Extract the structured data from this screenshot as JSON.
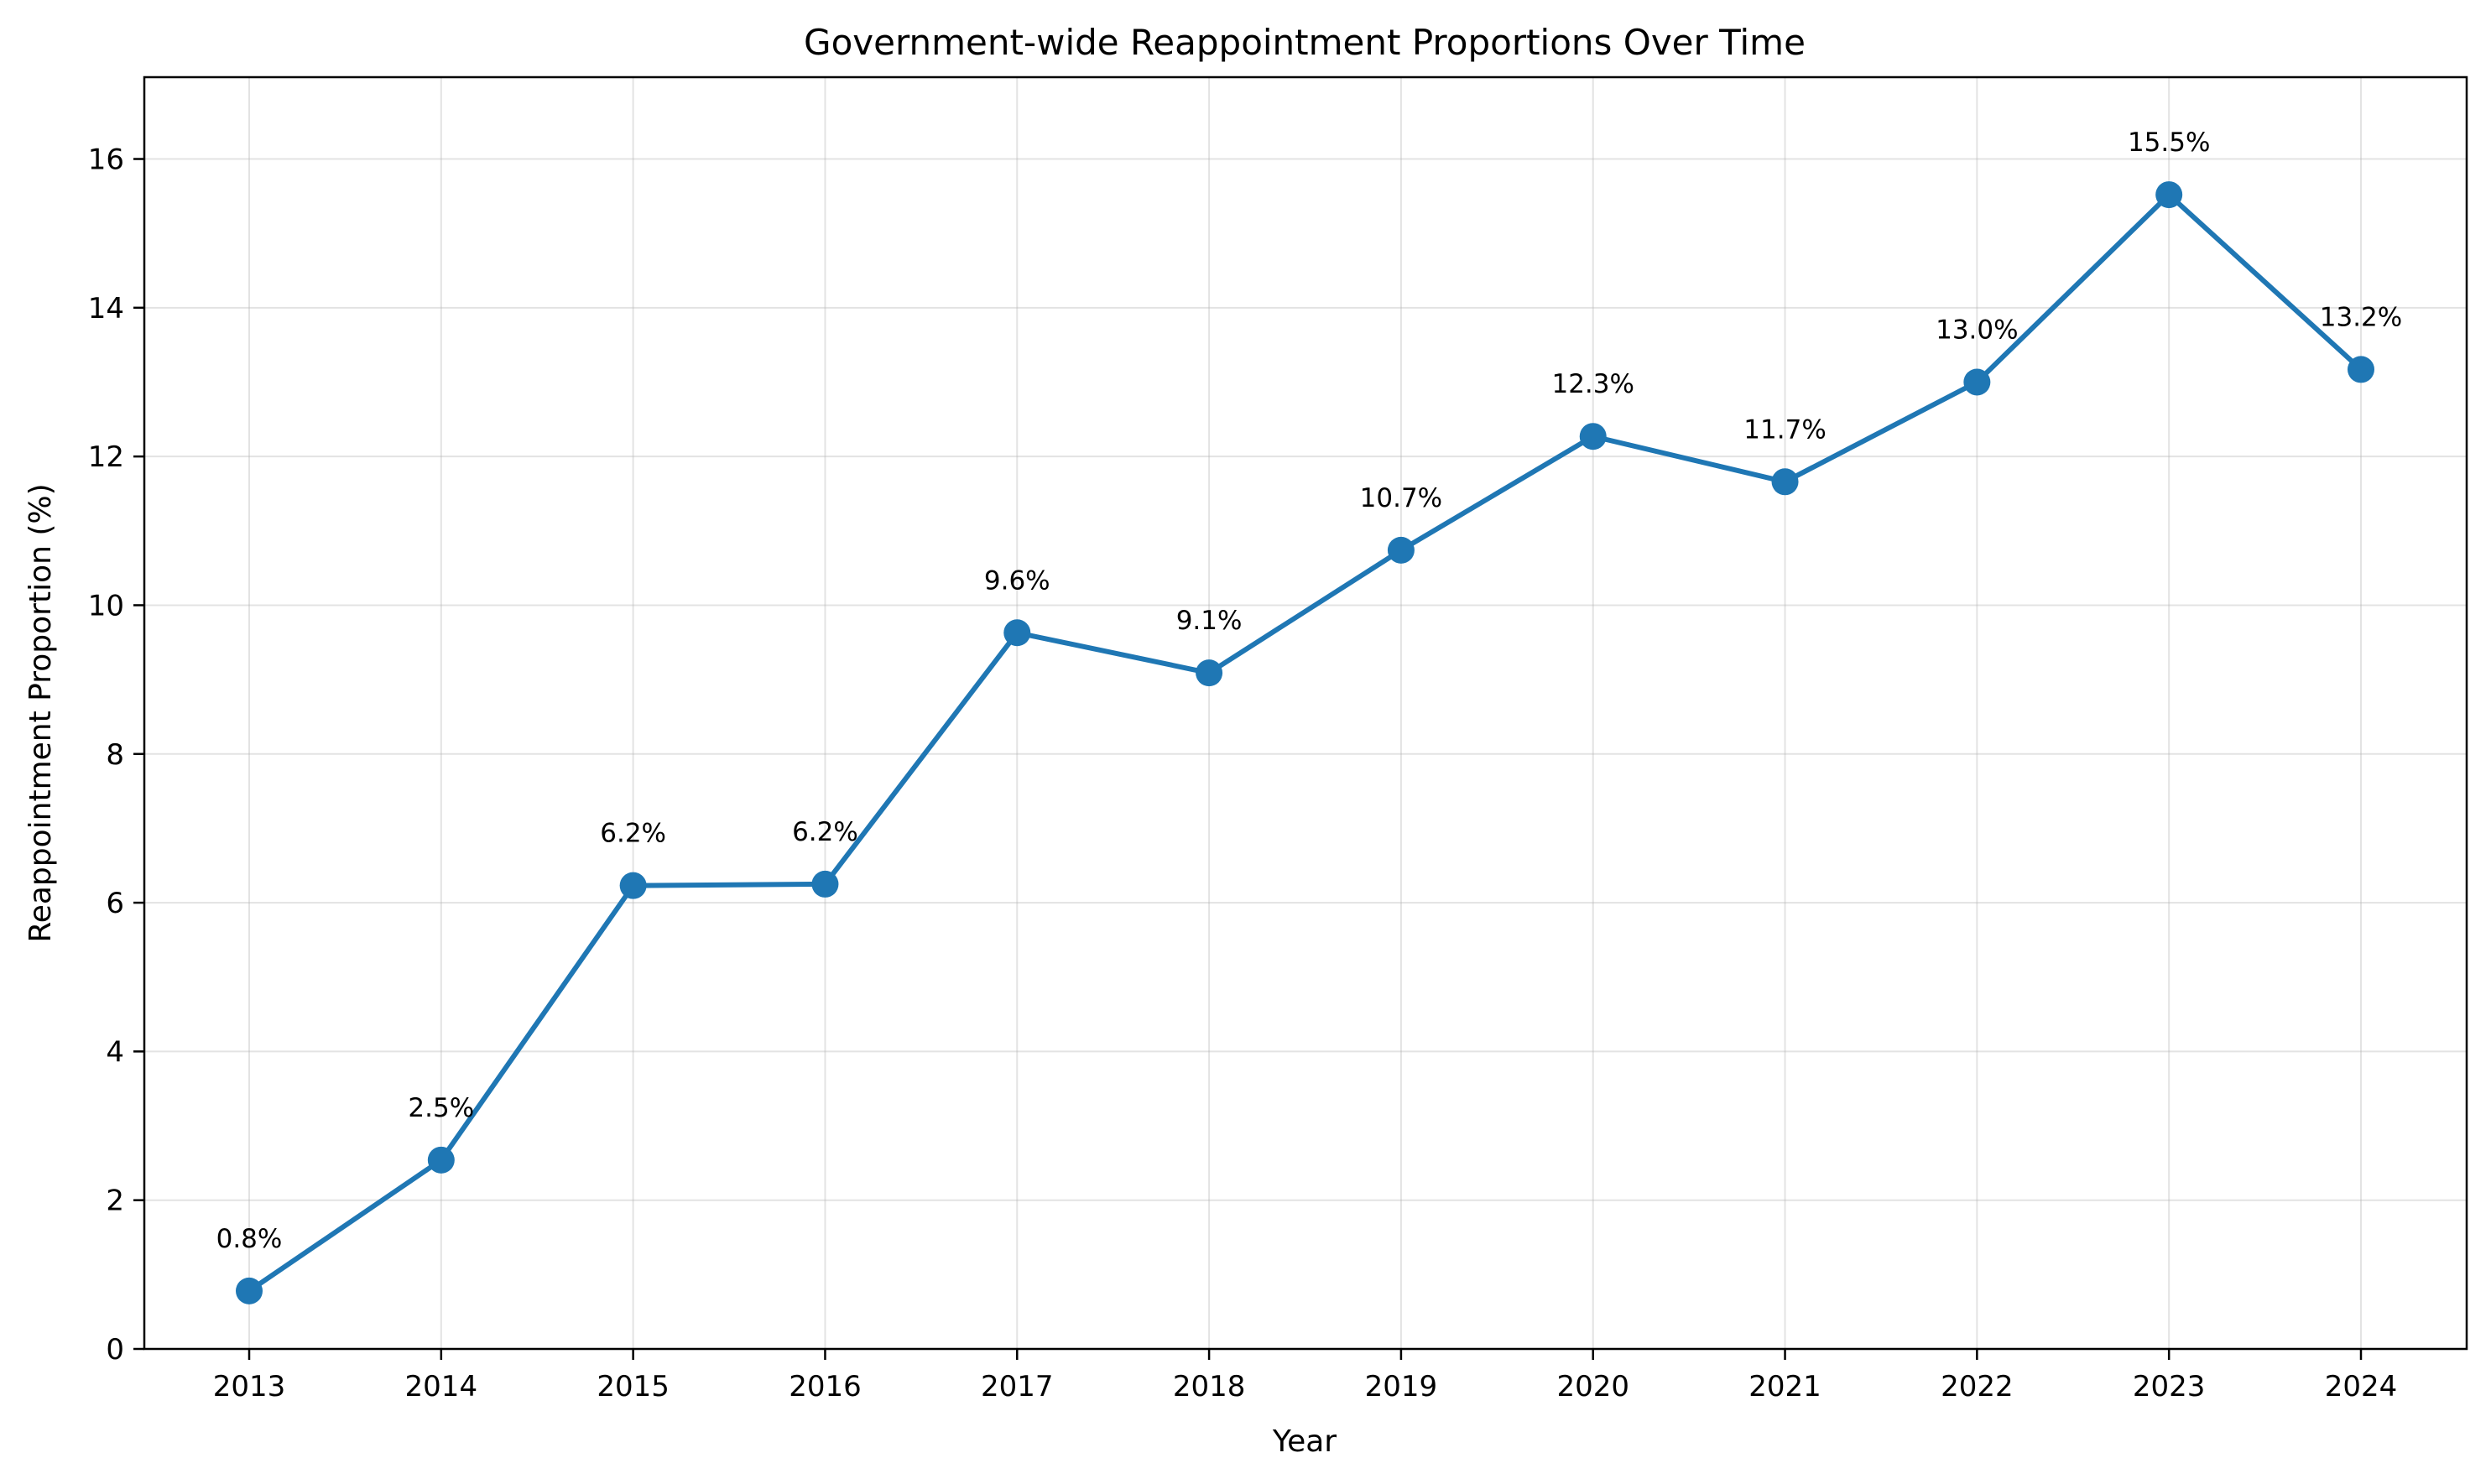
{
  "chart_data": {
    "type": "line",
    "title": "Government-wide Reappointment Proportions Over Time",
    "xlabel": "Year",
    "ylabel": "Reappointment Proportion (%)",
    "x": [
      "2013",
      "2014",
      "2015",
      "2016",
      "2017",
      "2018",
      "2019",
      "2020",
      "2021",
      "2022",
      "2023",
      "2024"
    ],
    "values": [
      0.78,
      2.54,
      6.23,
      6.25,
      9.63,
      9.09,
      10.74,
      12.27,
      11.66,
      13.0,
      15.52,
      13.17
    ],
    "data_labels": [
      "0.8%",
      "2.5%",
      "6.2%",
      "6.2%",
      "9.6%",
      "9.1%",
      "10.7%",
      "12.3%",
      "11.7%",
      "13.0%",
      "15.5%",
      "13.2%"
    ],
    "ylim": [
      0,
      17.1
    ],
    "yticks": [
      0,
      2,
      4,
      6,
      8,
      10,
      12,
      14,
      16
    ],
    "grid": true,
    "legend": "none",
    "line_color": "#1f77b4",
    "marker": "circle"
  }
}
